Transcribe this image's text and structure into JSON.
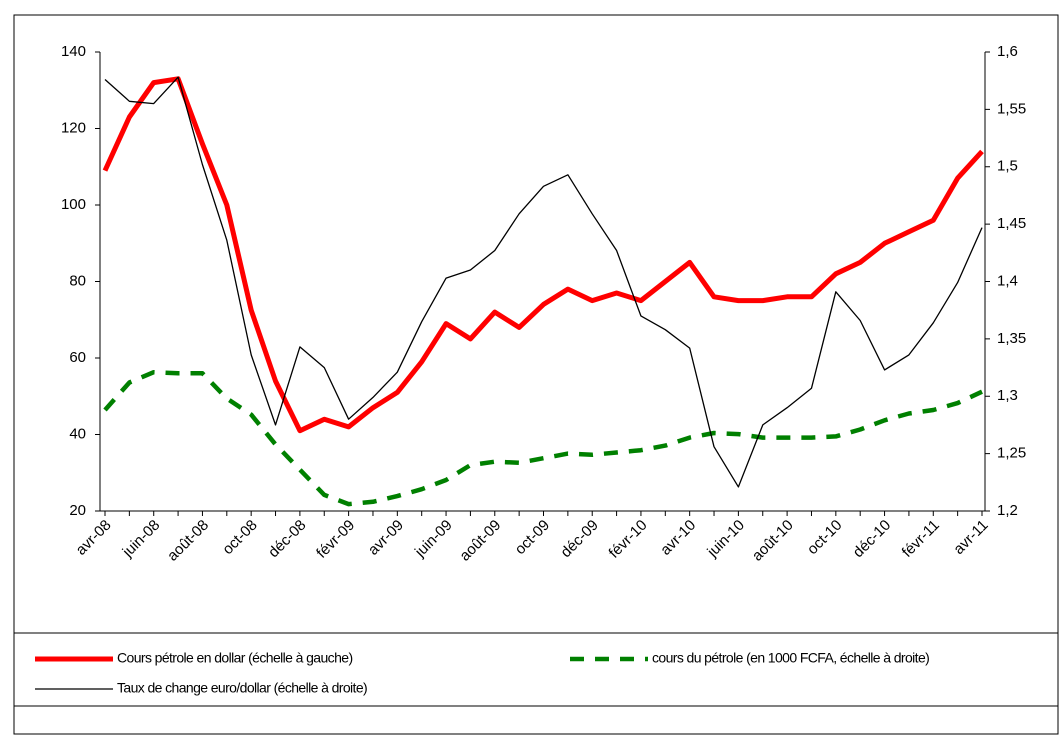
{
  "chart_data": {
    "type": "line",
    "categories": [
      "avr-08",
      null,
      "juin-08",
      null,
      "août-08",
      null,
      "oct-08",
      null,
      "déc-08",
      null,
      "févr-09",
      null,
      "avr-09",
      null,
      "juin-09",
      null,
      "août-09",
      null,
      "oct-09",
      null,
      "déc-09",
      null,
      "févr-10",
      null,
      "avr-10",
      null,
      "juin-10",
      null,
      "août-10",
      null,
      "oct-10",
      null,
      "déc-10",
      null,
      "févr-11",
      null,
      "avr-11"
    ],
    "series": [
      {
        "name": "Cours pétrole en dollar (échelle à gauche)",
        "color": "#ff0000",
        "axis": "y",
        "values": [
          109,
          123,
          132,
          133,
          116,
          100,
          72.5,
          54,
          41,
          44,
          42,
          47,
          51,
          59,
          69,
          65,
          72,
          68,
          74,
          78,
          75,
          77,
          75,
          80,
          85,
          76,
          75,
          75,
          76,
          76,
          82,
          85,
          90,
          93,
          96,
          107,
          114
        ]
      },
      {
        "name": "cours du pétrole (en 1000 FCFA, échelle à droite)",
        "color": "#008000",
        "axis": "y2",
        "values": [
          1.288,
          1.312,
          1.321,
          1.32,
          1.32,
          1.298,
          1.284,
          1.258,
          1.236,
          1.214,
          1.206,
          1.208,
          1.213,
          1.219,
          1.227,
          1.24,
          1.243,
          1.242,
          1.246,
          1.25,
          1.249,
          1.251,
          1.253,
          1.257,
          1.264,
          1.268,
          1.267,
          1.264,
          1.264,
          1.264,
          1.265,
          1.271,
          1.279,
          1.285,
          1.288,
          1.294,
          1.304
        ]
      },
      {
        "name": "Taux de change euro/dollar (échelle à droite)",
        "color": "#000000",
        "axis": "y2",
        "values": [
          1.576,
          1.557,
          1.555,
          1.578,
          1.502,
          1.436,
          1.336,
          1.275,
          1.343,
          1.325,
          1.28,
          1.299,
          1.321,
          1.365,
          1.403,
          1.41,
          1.427,
          1.459,
          1.483,
          1.493,
          1.459,
          1.427,
          1.37,
          1.358,
          1.342,
          1.256,
          1.221,
          1.275,
          1.29,
          1.307,
          1.391,
          1.366,
          1.323,
          1.336,
          1.364,
          1.399,
          1.447
        ]
      }
    ],
    "ylim": [
      20,
      140
    ],
    "yticks": [
      20,
      40,
      60,
      80,
      100,
      120,
      140
    ],
    "y2lim": [
      1.2,
      1.6
    ],
    "y2ticks": [
      {
        "value": 1.2,
        "label": "1,2"
      },
      {
        "value": 1.25,
        "label": "1,25"
      },
      {
        "value": 1.3,
        "label": "1,3"
      },
      {
        "value": 1.35,
        "label": "1,35"
      },
      {
        "value": 1.4,
        "label": "1,4"
      },
      {
        "value": 1.45,
        "label": "1,45"
      },
      {
        "value": 1.5,
        "label": "1,5"
      },
      {
        "value": 1.55,
        "label": "1,55"
      },
      {
        "value": 1.6,
        "label": "1,6"
      }
    ],
    "grid": false,
    "legend": "bottom"
  }
}
